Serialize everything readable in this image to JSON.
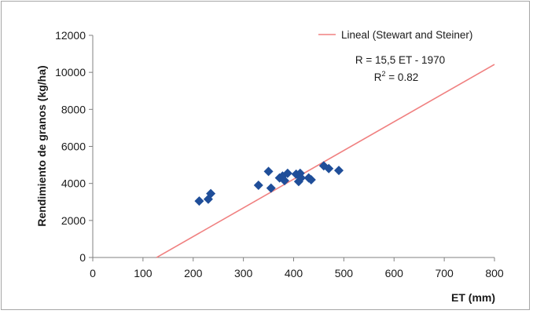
{
  "chart_data": {
    "type": "scatter",
    "title": "",
    "xlabel": "ET (mm)",
    "ylabel": "Rendimiento  de   granos   (kg/ha)",
    "xlim": [
      0,
      800
    ],
    "ylim": [
      0,
      12000
    ],
    "xticks": [
      0,
      100,
      200,
      300,
      400,
      500,
      600,
      700,
      800
    ],
    "yticks": [
      0,
      2000,
      4000,
      6000,
      8000,
      10000,
      12000
    ],
    "grid": false,
    "legend_position": "top-right",
    "series": [
      {
        "marker": "diamond",
        "color": "#1f4e99",
        "points": [
          {
            "x": 212,
            "y": 3050
          },
          {
            "x": 230,
            "y": 3150
          },
          {
            "x": 235,
            "y": 3450
          },
          {
            "x": 330,
            "y": 3900
          },
          {
            "x": 350,
            "y": 4650
          },
          {
            "x": 355,
            "y": 3750
          },
          {
            "x": 372,
            "y": 4300
          },
          {
            "x": 378,
            "y": 4400
          },
          {
            "x": 382,
            "y": 4150
          },
          {
            "x": 388,
            "y": 4550
          },
          {
            "x": 405,
            "y": 4500
          },
          {
            "x": 410,
            "y": 4100
          },
          {
            "x": 413,
            "y": 4550
          },
          {
            "x": 415,
            "y": 4300
          },
          {
            "x": 430,
            "y": 4300
          },
          {
            "x": 435,
            "y": 4200
          },
          {
            "x": 460,
            "y": 4950
          },
          {
            "x": 470,
            "y": 4800
          },
          {
            "x": 490,
            "y": 4700
          }
        ]
      },
      {
        "name": "Lineal (Stewart and Steiner)",
        "type": "line",
        "color": "#f08080",
        "slope": 15.5,
        "intercept": -1970,
        "x_range": [
          127,
          800
        ]
      }
    ],
    "annotations": {
      "equation": "R = 15,5  ET - 1970",
      "r2_prefix": "R",
      "r2_sup": "2",
      "r2_suffix": " = 0.82"
    }
  }
}
